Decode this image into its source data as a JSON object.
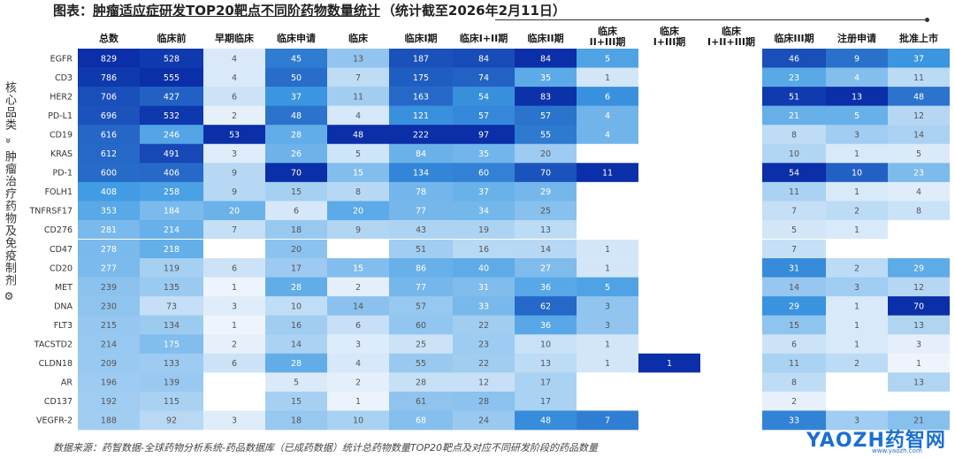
{
  "title": {
    "prefix": "图表：",
    "main": "肿瘤适应症研发TOP20靶点不同阶药物数量统计",
    "suffix": "（统计截至2026年2月11日）"
  },
  "side_label": {
    "category": "核心品类",
    "chevron": "»",
    "subject": "肿瘤治疗药物及免疫制剂",
    "gear": "⚙"
  },
  "chart_data": {
    "type": "heatmap",
    "columns": [
      "总数",
      "临床前",
      "早期临床",
      "临床申请",
      "临床",
      "临床I期",
      "临床I+II期",
      "临床II期",
      "临床\nII+III期",
      "临床\nI+III期",
      "临床\nI+II+III期",
      "临床III期",
      "注册申请",
      "批准上市"
    ],
    "rows": [
      {
        "target": "EGFR",
        "values": [
          829,
          528,
          4,
          45,
          13,
          187,
          84,
          84,
          5,
          null,
          null,
          46,
          9,
          37
        ]
      },
      {
        "target": "CD3",
        "values": [
          786,
          555,
          4,
          50,
          7,
          175,
          74,
          35,
          1,
          null,
          null,
          23,
          4,
          11
        ]
      },
      {
        "target": "HER2",
        "values": [
          706,
          427,
          6,
          37,
          11,
          163,
          54,
          83,
          6,
          null,
          null,
          51,
          13,
          48
        ]
      },
      {
        "target": "PD-L1",
        "values": [
          696,
          532,
          2,
          48,
          4,
          121,
          57,
          57,
          4,
          null,
          null,
          21,
          5,
          12
        ]
      },
      {
        "target": "CD19",
        "values": [
          616,
          246,
          53,
          28,
          48,
          222,
          97,
          55,
          4,
          null,
          null,
          8,
          3,
          14
        ]
      },
      {
        "target": "KRAS",
        "values": [
          612,
          491,
          3,
          26,
          5,
          84,
          35,
          20,
          null,
          null,
          null,
          10,
          1,
          5
        ]
      },
      {
        "target": "PD-1",
        "values": [
          600,
          406,
          9,
          70,
          15,
          134,
          60,
          70,
          11,
          null,
          null,
          54,
          10,
          23
        ]
      },
      {
        "target": "FOLH1",
        "values": [
          408,
          258,
          9,
          15,
          8,
          78,
          37,
          29,
          null,
          null,
          null,
          11,
          1,
          4
        ]
      },
      {
        "target": "TNFRSF17",
        "values": [
          353,
          184,
          20,
          6,
          20,
          77,
          34,
          25,
          null,
          null,
          null,
          7,
          2,
          8
        ]
      },
      {
        "target": "CD276",
        "values": [
          281,
          214,
          7,
          18,
          9,
          43,
          19,
          13,
          null,
          null,
          null,
          5,
          1,
          null
        ]
      },
      {
        "target": "CD47",
        "values": [
          278,
          218,
          null,
          20,
          null,
          51,
          16,
          14,
          1,
          null,
          null,
          7,
          null,
          null
        ]
      },
      {
        "target": "CD20",
        "values": [
          277,
          119,
          6,
          17,
          15,
          86,
          40,
          27,
          1,
          null,
          null,
          31,
          2,
          29
        ]
      },
      {
        "target": "MET",
        "values": [
          239,
          135,
          1,
          28,
          2,
          77,
          31,
          36,
          5,
          null,
          null,
          14,
          3,
          12
        ]
      },
      {
        "target": "DNA",
        "values": [
          230,
          73,
          3,
          10,
          14,
          57,
          33,
          62,
          3,
          null,
          null,
          29,
          1,
          70
        ]
      },
      {
        "target": "FLT3",
        "values": [
          215,
          134,
          1,
          16,
          6,
          60,
          22,
          36,
          3,
          null,
          null,
          15,
          1,
          13
        ]
      },
      {
        "target": "TACSTD2",
        "values": [
          214,
          175,
          2,
          14,
          3,
          25,
          23,
          10,
          1,
          null,
          null,
          6,
          1,
          3
        ]
      },
      {
        "target": "CLDN18",
        "values": [
          209,
          133,
          6,
          28,
          4,
          55,
          22,
          13,
          1,
          1,
          null,
          11,
          2,
          1
        ]
      },
      {
        "target": "AR",
        "values": [
          196,
          139,
          null,
          5,
          2,
          28,
          12,
          17,
          null,
          null,
          null,
          8,
          null,
          13
        ]
      },
      {
        "target": "CD137",
        "values": [
          192,
          115,
          null,
          15,
          1,
          61,
          28,
          17,
          null,
          null,
          null,
          2,
          null,
          null
        ]
      },
      {
        "target": "VEGFR-2",
        "values": [
          188,
          92,
          3,
          18,
          10,
          68,
          24,
          48,
          7,
          null,
          null,
          33,
          3,
          21
        ]
      }
    ],
    "color_scale": {
      "low": "#f4f7fd",
      "mid": "#3e9be3",
      "high": "#0a2fa8"
    },
    "legend": "none"
  },
  "source_note": "数据来源：药智数据-全球药物分析系统-药品数据库（已成药数据）统计总药物数量TOP20靶点及对应不同研发阶段的药品数量",
  "brand": {
    "logo_text": "YAOZH药智网",
    "url": "www.yaozh.com"
  }
}
